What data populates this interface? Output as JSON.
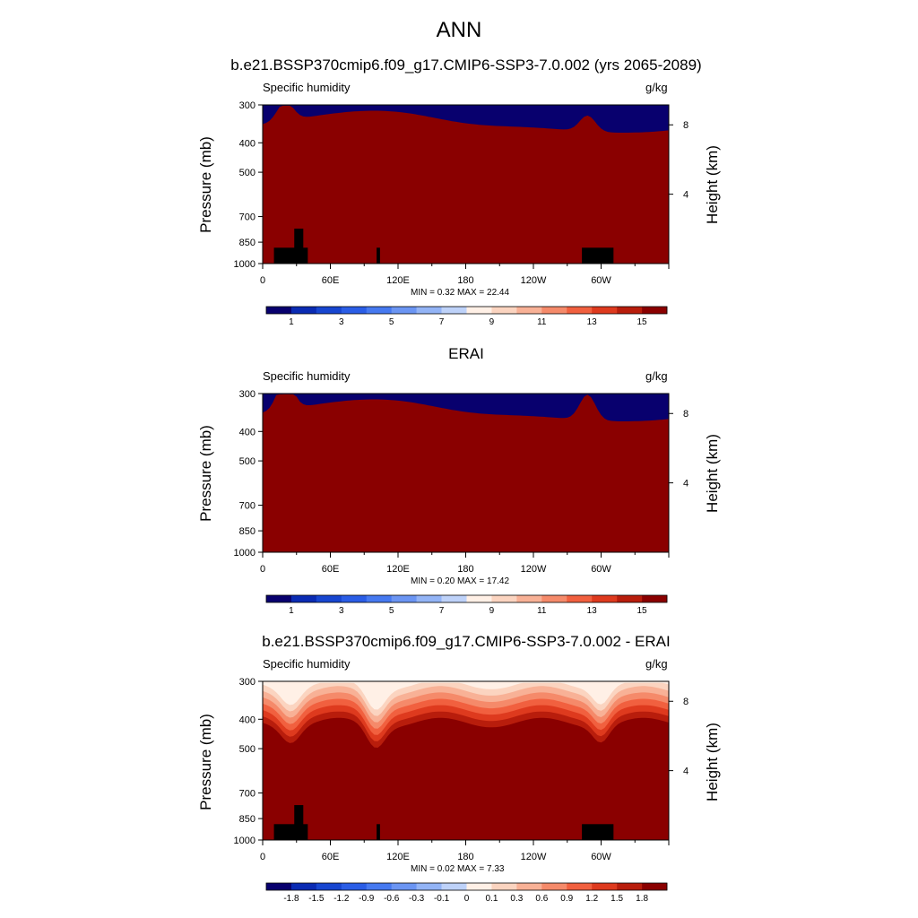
{
  "title": "ANN",
  "colors": {
    "abs_scale": [
      "#08006e",
      "#0a2bb3",
      "#1746d0",
      "#2a5de6",
      "#4679f0",
      "#6b95f3",
      "#93b4f6",
      "#bed2f9",
      "#fff0e6",
      "#fbd4c0",
      "#f8b196",
      "#f58a6a",
      "#f1603f",
      "#de3a1e",
      "#b81d0c",
      "#8a0000"
    ],
    "diff_scale": [
      "#08006e",
      "#0a2bb3",
      "#1746d0",
      "#2a5de6",
      "#4679f0",
      "#6b95f3",
      "#93b4f6",
      "#bed2f9",
      "#fff0e6",
      "#fbd4c0",
      "#f8b196",
      "#f58a6a",
      "#f1603f",
      "#de3a1e",
      "#b81d0c",
      "#8a0000"
    ],
    "land_mask": "#000000"
  },
  "panels": [
    {
      "title": "b.e21.BSSP370cmip6.f09_g17.CMIP6-SSP3-7.0.002 (yrs 2065-2089)",
      "variable": "Specific humidity",
      "units": "g/kg",
      "ylabel": "Pressure (mb)",
      "ylabel_right": "Height (km)",
      "stats": "MIN =   0.32  MAX =  22.44",
      "colorbar_labels": [
        "1",
        "3",
        "5",
        "7",
        "9",
        "11",
        "13",
        "15"
      ]
    },
    {
      "title": "ERAI",
      "variable": "Specific humidity",
      "units": "g/kg",
      "ylabel": "Pressure (mb)",
      "ylabel_right": "Height (km)",
      "stats": "MIN =   0.20  MAX =  17.42",
      "colorbar_labels": [
        "1",
        "3",
        "5",
        "7",
        "9",
        "11",
        "13",
        "15"
      ]
    },
    {
      "title": "b.e21.BSSP370cmip6.f09_g17.CMIP6-SSP3-7.0.002 - ERAI",
      "variable": "Specific humidity",
      "units": "g/kg",
      "ylabel": "Pressure (mb)",
      "ylabel_right": "Height (km)",
      "stats": "MIN =   0.02  MAX =   7.33",
      "colorbar_labels": [
        "-1.8",
        "-1.5",
        "-1.2",
        "-0.9",
        "-0.6",
        "-0.3",
        "-0.1",
        "0",
        "0.1",
        "0.3",
        "0.6",
        "0.9",
        "1.2",
        "1.5",
        "1.8"
      ]
    }
  ],
  "chart_data": [
    {
      "type": "heatmap",
      "title": "b.e21.BSSP370cmip6.f09_g17.CMIP6-SSP3-7.0.002 (yrs 2065-2089)",
      "subtitle": "Specific humidity",
      "units": "g/kg",
      "xlabel": "",
      "ylabel": "Pressure (mb)",
      "ylabel_right": "Height (km)",
      "x_ticks": [
        "0",
        "60E",
        "120E",
        "180",
        "120W",
        "60W"
      ],
      "x_tick_values": [
        0,
        60,
        120,
        180,
        240,
        300
      ],
      "xlim": [
        0,
        360
      ],
      "y_ticks": [
        "300",
        "400",
        "500",
        "700",
        "850",
        "1000"
      ],
      "y_tick_values": [
        300,
        400,
        500,
        700,
        850,
        1000
      ],
      "ylim": [
        300,
        1000
      ],
      "y_scale": "log",
      "right_ticks": [
        "8",
        "4"
      ],
      "right_tick_values": [
        8,
        4
      ],
      "levels": [
        0,
        1,
        2,
        3,
        4,
        5,
        6,
        7,
        8,
        9,
        10,
        11,
        12,
        13,
        14,
        15
      ],
      "colorbar_labels": [
        "1",
        "3",
        "5",
        "7",
        "9",
        "11",
        "13",
        "15"
      ],
      "min": 0.32,
      "max": 22.44
    },
    {
      "type": "heatmap",
      "title": "ERAI",
      "subtitle": "Specific humidity",
      "units": "g/kg",
      "xlabel": "",
      "ylabel": "Pressure (mb)",
      "ylabel_right": "Height (km)",
      "x_ticks": [
        "0",
        "60E",
        "120E",
        "180",
        "120W",
        "60W"
      ],
      "x_tick_values": [
        0,
        60,
        120,
        180,
        240,
        300
      ],
      "xlim": [
        0,
        360
      ],
      "y_ticks": [
        "300",
        "400",
        "500",
        "700",
        "850",
        "1000"
      ],
      "y_tick_values": [
        300,
        400,
        500,
        700,
        850,
        1000
      ],
      "ylim": [
        300,
        1000
      ],
      "y_scale": "log",
      "right_ticks": [
        "8",
        "4"
      ],
      "right_tick_values": [
        8,
        4
      ],
      "levels": [
        0,
        1,
        2,
        3,
        4,
        5,
        6,
        7,
        8,
        9,
        10,
        11,
        12,
        13,
        14,
        15
      ],
      "colorbar_labels": [
        "1",
        "3",
        "5",
        "7",
        "9",
        "11",
        "13",
        "15"
      ],
      "min": 0.2,
      "max": 17.42
    },
    {
      "type": "heatmap",
      "title": "b.e21.BSSP370cmip6.f09_g17.CMIP6-SSP3-7.0.002 - ERAI",
      "subtitle": "Specific humidity",
      "units": "g/kg",
      "xlabel": "",
      "ylabel": "Pressure (mb)",
      "ylabel_right": "Height (km)",
      "x_ticks": [
        "0",
        "60E",
        "120E",
        "180",
        "120W",
        "60W"
      ],
      "x_tick_values": [
        0,
        60,
        120,
        180,
        240,
        300
      ],
      "xlim": [
        0,
        360
      ],
      "y_ticks": [
        "300",
        "400",
        "500",
        "700",
        "850",
        "1000"
      ],
      "y_tick_values": [
        300,
        400,
        500,
        700,
        850,
        1000
      ],
      "ylim": [
        300,
        1000
      ],
      "y_scale": "log",
      "right_ticks": [
        "8",
        "4"
      ],
      "right_tick_values": [
        8,
        4
      ],
      "levels": [
        -1.8,
        -1.5,
        -1.2,
        -0.9,
        -0.6,
        -0.3,
        -0.1,
        0,
        0.1,
        0.3,
        0.6,
        0.9,
        1.2,
        1.5,
        1.8
      ],
      "colorbar_labels": [
        "-1.8",
        "-1.5",
        "-1.2",
        "-0.9",
        "-0.6",
        "-0.3",
        "-0.1",
        "0",
        "0.1",
        "0.3",
        "0.6",
        "0.9",
        "1.2",
        "1.5",
        "1.8"
      ],
      "min": 0.02,
      "max": 7.33
    }
  ]
}
